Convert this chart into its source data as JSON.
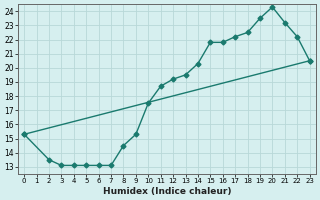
{
  "xlabel": "Humidex (Indice chaleur)",
  "bg_color": "#d6efef",
  "grid_color": "#b8d8d8",
  "line_color": "#1a7a6e",
  "xlim": [
    -0.5,
    23.5
  ],
  "ylim": [
    12.5,
    24.5
  ],
  "xticks": [
    0,
    1,
    2,
    3,
    4,
    5,
    6,
    7,
    8,
    9,
    10,
    11,
    12,
    13,
    14,
    15,
    16,
    17,
    18,
    19,
    20,
    21,
    22,
    23
  ],
  "yticks": [
    13,
    14,
    15,
    16,
    17,
    18,
    19,
    20,
    21,
    22,
    23,
    24
  ],
  "line1_x": [
    0,
    23
  ],
  "line1_y": [
    15.3,
    20.5
  ],
  "line2_x": [
    0,
    2,
    3,
    4,
    5,
    6,
    7,
    8,
    9,
    10,
    11,
    12,
    13,
    14,
    15,
    16,
    17,
    18,
    19,
    20,
    21,
    22,
    23
  ],
  "line2_y": [
    15.3,
    13.5,
    13.1,
    13.1,
    13.1,
    13.1,
    13.1,
    14.5,
    15.3,
    17.5,
    18.7,
    19.2,
    19.5,
    20.3,
    21.8,
    21.8,
    22.2,
    22.5,
    23.5,
    24.3,
    23.2,
    22.2,
    20.5
  ],
  "marker": "D",
  "marker_size": 2.5,
  "line_width": 1.0
}
